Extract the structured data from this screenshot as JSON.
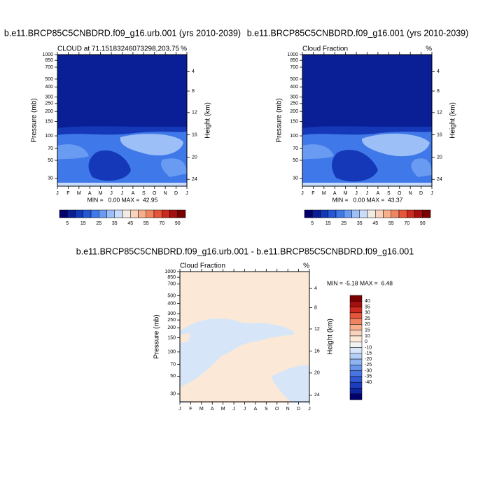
{
  "chart_data": [
    {
      "type": "contour",
      "title": "b.e11.BRCP85C5CNBDRD.f09_g16.urb.001 (yrs 2010-2039)",
      "subtitle": "CLOUD at 71.15183246073298,203.75",
      "units": "%",
      "stats": "MIN =   0.00 MAX =  42.95",
      "ylabel": "Pressure (mb)",
      "y2label": "Height (km)",
      "categories": [
        "J",
        "F",
        "M",
        "A",
        "M",
        "J",
        "J",
        "A",
        "S",
        "O",
        "N",
        "D",
        "J"
      ],
      "ylim": [
        1000,
        24
      ],
      "log_y": true,
      "yticks": [
        30,
        50,
        70,
        100,
        150,
        200,
        250,
        300,
        400,
        500,
        700,
        850,
        1000
      ],
      "y2ticks": [
        4,
        8,
        12,
        16,
        20,
        24
      ],
      "colorbar": {
        "orientation": "horizontal",
        "labels": [
          5,
          15,
          25,
          35,
          45,
          55,
          70,
          90
        ],
        "colors": [
          "#03006b",
          "#0a1f96",
          "#1438b8",
          "#2457d4",
          "#3f78e8",
          "#6a9bf2",
          "#9cbff7",
          "#c9dcf9",
          "#f2ebe4",
          "#f9d2bd",
          "#f6ae8c",
          "#f08461",
          "#e4553c",
          "#cc2a1f",
          "#a40f0f",
          "#7a0000"
        ]
      }
    },
    {
      "type": "contour",
      "title": "b.e11.BRCP85C5CNBDRD.f09_g16.001 (yrs 2010-2039)",
      "subtitle": "Cloud Fraction",
      "units": "%",
      "stats": "MIN =   0.00 MAX =  43.37",
      "ylabel": "Pressure (mb)",
      "y2label": "Height (km)",
      "categories": [
        "J",
        "F",
        "M",
        "A",
        "M",
        "J",
        "J",
        "A",
        "S",
        "O",
        "N",
        "D",
        "J"
      ],
      "ylim": [
        1000,
        24
      ],
      "log_y": true,
      "yticks": [
        30,
        50,
        70,
        100,
        150,
        200,
        250,
        300,
        400,
        500,
        700,
        850,
        1000
      ],
      "y2ticks": [
        4,
        8,
        12,
        16,
        20,
        24
      ],
      "colorbar": {
        "orientation": "horizontal",
        "labels": [
          5,
          15,
          25,
          35,
          45,
          55,
          70,
          90
        ],
        "colors": [
          "#03006b",
          "#0a1f96",
          "#1438b8",
          "#2457d4",
          "#3f78e8",
          "#6a9bf2",
          "#9cbff7",
          "#c9dcf9",
          "#f2ebe4",
          "#f9d2bd",
          "#f6ae8c",
          "#f08461",
          "#e4553c",
          "#cc2a1f",
          "#a40f0f",
          "#7a0000"
        ]
      }
    },
    {
      "type": "contour",
      "title": "b.e11.BRCP85C5CNBDRD.f09_g16.urb.001 - b.e11.BRCP85C5CNBDRD.f09_g16.001",
      "subtitle": "Cloud Fraction",
      "units": "%",
      "stats": "MIN = -5.18 MAX =  6.48",
      "ylabel": "Pressure (mb)",
      "y2label": "Height (km)",
      "categories": [
        "J",
        "F",
        "M",
        "A",
        "M",
        "J",
        "J",
        "A",
        "S",
        "O",
        "N",
        "D",
        "J"
      ],
      "ylim": [
        1000,
        24
      ],
      "log_y": true,
      "yticks": [
        30,
        50,
        70,
        100,
        150,
        200,
        250,
        300,
        400,
        500,
        700,
        850,
        1000
      ],
      "y2ticks": [
        4,
        8,
        12,
        16,
        20,
        24
      ],
      "colorbar": {
        "orientation": "vertical",
        "labels": [
          40,
          35,
          30,
          25,
          20,
          15,
          10,
          0,
          -10,
          -15,
          -20,
          -25,
          -30,
          -35,
          -40
        ],
        "colors": [
          "#7a0000",
          "#a40f0f",
          "#cc2a1f",
          "#e4553c",
          "#f08461",
          "#f6ae8c",
          "#f9d2bd",
          "#fce8d6",
          "#f2f2f2",
          "#d6e6f8",
          "#b4cef5",
          "#8fb3f0",
          "#6a94ea",
          "#4a75e0",
          "#3058d2",
          "#1c3dbc",
          "#0f259e",
          "#03006b"
        ]
      }
    }
  ]
}
